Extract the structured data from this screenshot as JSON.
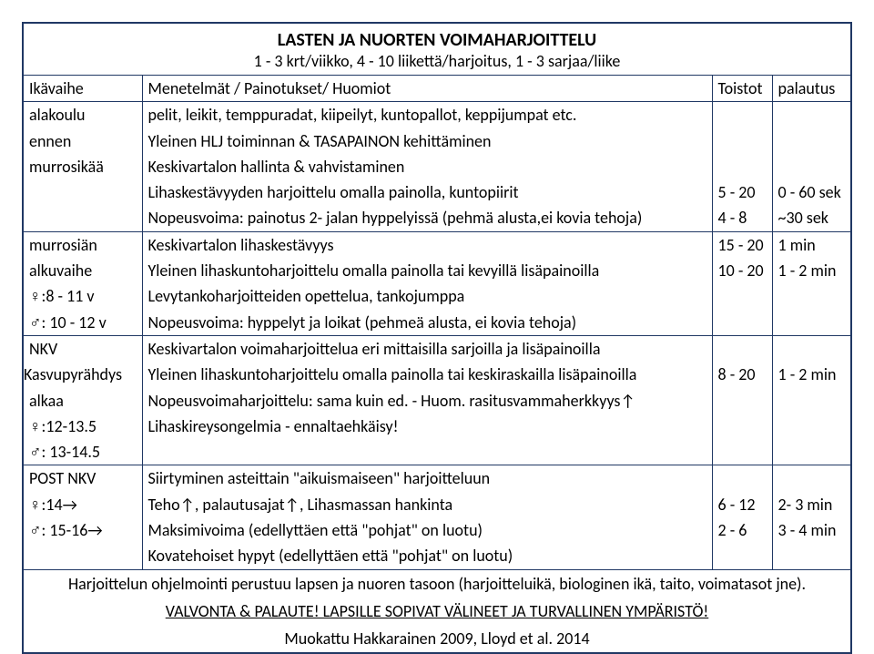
{
  "colors": {
    "border": "#203864",
    "text": "#000000",
    "bg": "#ffffff"
  },
  "font": {
    "family": "Calibri",
    "body_pt": 18,
    "title_pt": 20
  },
  "title": "LASTEN JA NUORTEN VOIMAHARJOITTELU",
  "subtitle": "1 - 3 krt/viikko, 4 - 10 liikettä/harjoitus, 1 - 3 sarjaa/liike",
  "header": {
    "c0": "Ikävaihe",
    "c1": "Menetelmät / Painotukset/ Huomiot",
    "c2": "Toistot",
    "c3": "palautus"
  },
  "s1": {
    "left": [
      "alakoulu",
      "ennen",
      "murrosikää"
    ],
    "lines": [
      "pelit, leikit, temppuradat, kiipeilyt, kuntopallot, keppijumpat etc.",
      "Yleinen HLJ toiminnan & TASAPAINON kehittäminen",
      "Keskivartalon hallinta & vahvistaminen",
      "Lihaskestävyyden harjoittelu omalla painolla, kuntopiirit",
      "Nopeusvoima: painotus 2- jalan hyppelyissä (pehmä alusta,ei kovia tehoja)"
    ],
    "reps": [
      "",
      "",
      "",
      "5 - 20",
      "4 - 8"
    ],
    "rest": [
      "",
      "",
      "",
      "0 - 60 sek",
      "~30 sek"
    ]
  },
  "s2": {
    "left": [
      "murrosiän",
      "alkuvaihe",
      "♀:8 - 11 v",
      "♂: 10 - 12 v"
    ],
    "lines": [
      "Keskivartalon lihaskestävyys",
      "Yleinen lihaskuntoharjoittelu omalla painolla tai kevyillä lisäpainoilla",
      "Levytankoharjoitteiden opettelua, tankojumppa",
      "Nopeusvoima: hyppelyt ja loikat (pehmeä alusta, ei kovia tehoja)"
    ],
    "reps": [
      "15 - 20",
      "10 - 20",
      "",
      ""
    ],
    "rest": [
      "1 min",
      "1 - 2 min",
      "",
      ""
    ]
  },
  "s3": {
    "left": [
      "NKV",
      "Kasvupyrähdys",
      "alkaa",
      "♀:12-13.5",
      "♂: 13-14.5"
    ],
    "lines": [
      "Keskivartalon voimaharjoittelua eri mittaisilla sarjoilla ja lisäpainoilla",
      "Yleinen lihaskuntoharjoittelu omalla painolla tai keskiraskailla lisäpainoilla",
      "Nopeusvoimaharjoittelu: sama kuin ed. - Huom. rasitusvammaherkkyys↑",
      "Lihaskireysongelmia - ennaltaehkäisy!",
      ""
    ],
    "reps": [
      "",
      "8 - 20",
      "",
      "",
      ""
    ],
    "rest": [
      "",
      "1 - 2 min",
      "",
      "",
      ""
    ]
  },
  "s4": {
    "left": [
      "POST NKV",
      "♀:14→",
      "♂: 15-16→"
    ],
    "lines": [
      "Siirtyminen asteittain \"aikuismaiseen\" harjoitteluun",
      "Teho↑, palautusajat↑, Lihasmassan hankinta",
      "Maksimivoima (edellyttäen että \"pohjat\" on luotu)",
      "Kovatehoiset hypyt (edellyttäen että \"pohjat\" on luotu)"
    ],
    "reps": [
      "",
      "6 - 12",
      "2 - 6",
      ""
    ],
    "rest": [
      "",
      "2- 3 min",
      "3 - 4 min",
      ""
    ]
  },
  "footer": {
    "l1": "Harjoittelun ohjelmointi perustuu lapsen ja nuoren tasoon (harjoitteluikä, biologinen ikä, taito, voimatasot jne).",
    "l2": "VALVONTA & PALAUTE! LAPSILLE SOPIVAT VÄLINEET JA TURVALLINEN YMPÄRISTÖ!",
    "l3": "Muokattu Hakkarainen 2009, Lloyd et al. 2014"
  }
}
